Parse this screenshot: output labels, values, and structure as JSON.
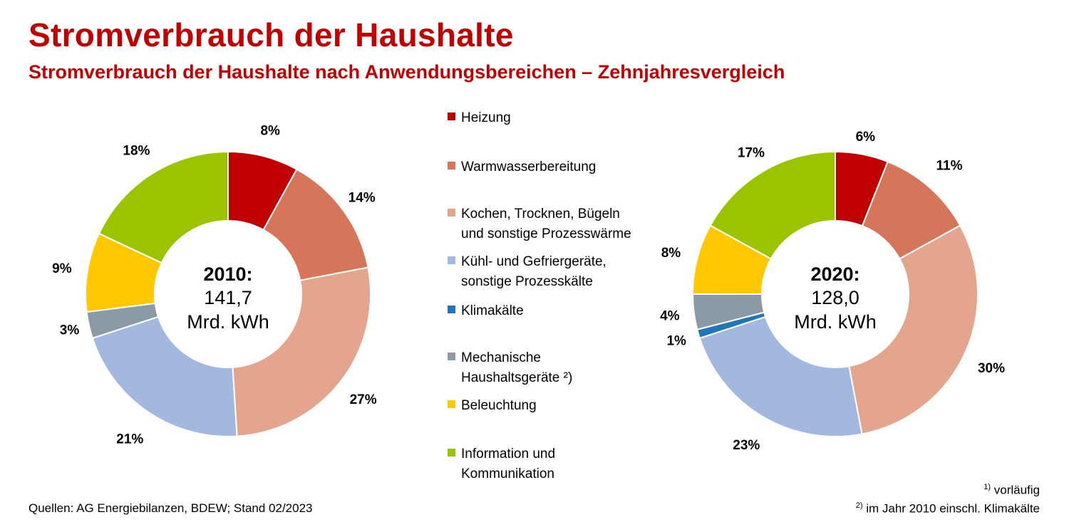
{
  "title": "Stromverbrauch der Haushalte",
  "subtitle": "Stromverbrauch der Haushalte nach Anwendungsbereichen – Zehnjahresvergleich",
  "legend": [
    {
      "label": "Heizung",
      "color": "#c00000"
    },
    {
      "label": "Warmwasserbereitung",
      "color": "#d5765a"
    },
    {
      "label": "Kochen, Trocknen, Bügeln\nund sonstige Prozesswärme",
      "color": "#e3a58d"
    },
    {
      "label": "Kühl- und Gefriergeräte,\nsonstige Prozesskälte",
      "color": "#a2b8df"
    },
    {
      "label": "Klimakälte",
      "color": "#2176b8"
    },
    {
      "label": "Mechanische\nHaushaltsgeräte ²)",
      "color": "#8c9aa6"
    },
    {
      "label": "Beleuchtung",
      "color": "#ffc800"
    },
    {
      "label": "Information und\nKommunikation",
      "color": "#9bc400"
    }
  ],
  "chart_data": [
    {
      "type": "pie",
      "center_year": "2010:",
      "center_value": "141,7",
      "center_unit": "Mrd. kWh",
      "categories": [
        "Heizung",
        "Warmwasserbereitung",
        "Kochen, Trocknen, Bügeln und sonstige Prozesswärme",
        "Kühl- und Gefriergeräte, sonstige Prozesskälte",
        "Mechanische Haushaltsgeräte",
        "Beleuchtung",
        "Information und Kommunikation"
      ],
      "values": [
        8,
        14,
        27,
        21,
        3,
        9,
        18
      ],
      "labels": [
        "8%",
        "14%",
        "27%",
        "21%",
        "3%",
        "9%",
        "18%"
      ],
      "colors": [
        "#c00000",
        "#d5765a",
        "#e3a58d",
        "#a2b8df",
        "#8c9aa6",
        "#ffc800",
        "#9bc400"
      ]
    },
    {
      "type": "pie",
      "center_year": "2020:",
      "center_value": "128,0",
      "center_unit": "Mrd. kWh",
      "categories": [
        "Heizung",
        "Warmwasserbereitung",
        "Kochen, Trocknen, Bügeln und sonstige Prozesswärme",
        "Kühl- und Gefriergeräte, sonstige Prozesskälte",
        "Klimakälte",
        "Mechanische Haushaltsgeräte",
        "Beleuchtung",
        "Information und Kommunikation"
      ],
      "values": [
        6,
        11,
        30,
        23,
        1,
        4,
        8,
        17
      ],
      "labels": [
        "6%",
        "11%",
        "30%",
        "23%",
        "1%",
        "4%",
        "8%",
        "17%"
      ],
      "colors": [
        "#c00000",
        "#d5765a",
        "#e3a58d",
        "#a2b8df",
        "#2176b8",
        "#8c9aa6",
        "#ffc800",
        "#9bc400"
      ]
    }
  ],
  "sources": "Quellen: AG Energiebilanzen, BDEW; Stand 02/2023",
  "footnote1_mark": "1)",
  "footnote1": "vorläufig",
  "footnote2_mark": "2)",
  "footnote2": "im Jahr 2010 einschl. Klimakälte"
}
